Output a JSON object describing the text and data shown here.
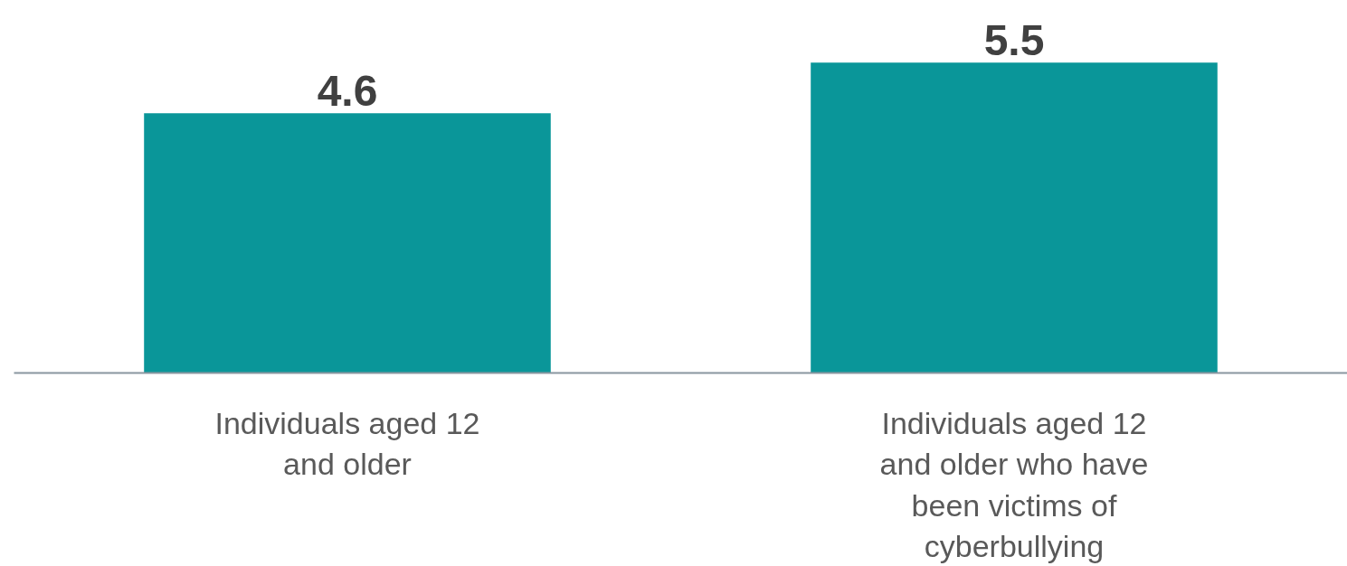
{
  "chart_data": {
    "type": "bar",
    "categories": [
      "Individuals aged 12 and older",
      "Individuals aged 12 and older who have been victims of cyberbullying"
    ],
    "values": [
      4.6,
      5.5
    ],
    "color": "#0a9699",
    "tick_labels": "x",
    "data_labels": true
  }
}
